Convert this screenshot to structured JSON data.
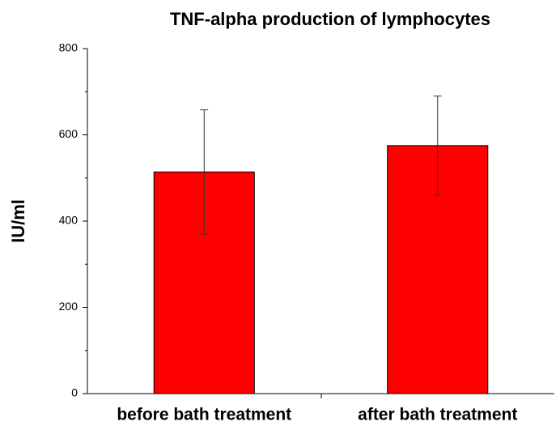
{
  "chart_data": {
    "type": "bar",
    "title": "TNF-alpha production of lymphocytes",
    "y_label": "IU/ml",
    "categories": [
      "before bath treatment",
      "after bath treatment"
    ],
    "values": [
      514,
      575
    ],
    "errors": [
      144,
      115
    ],
    "color": "#ff0000",
    "ylim": [
      0,
      800
    ],
    "yticks": [
      0,
      200,
      400,
      600,
      800
    ],
    "yminorticks": [
      100,
      300,
      500,
      700
    ]
  }
}
